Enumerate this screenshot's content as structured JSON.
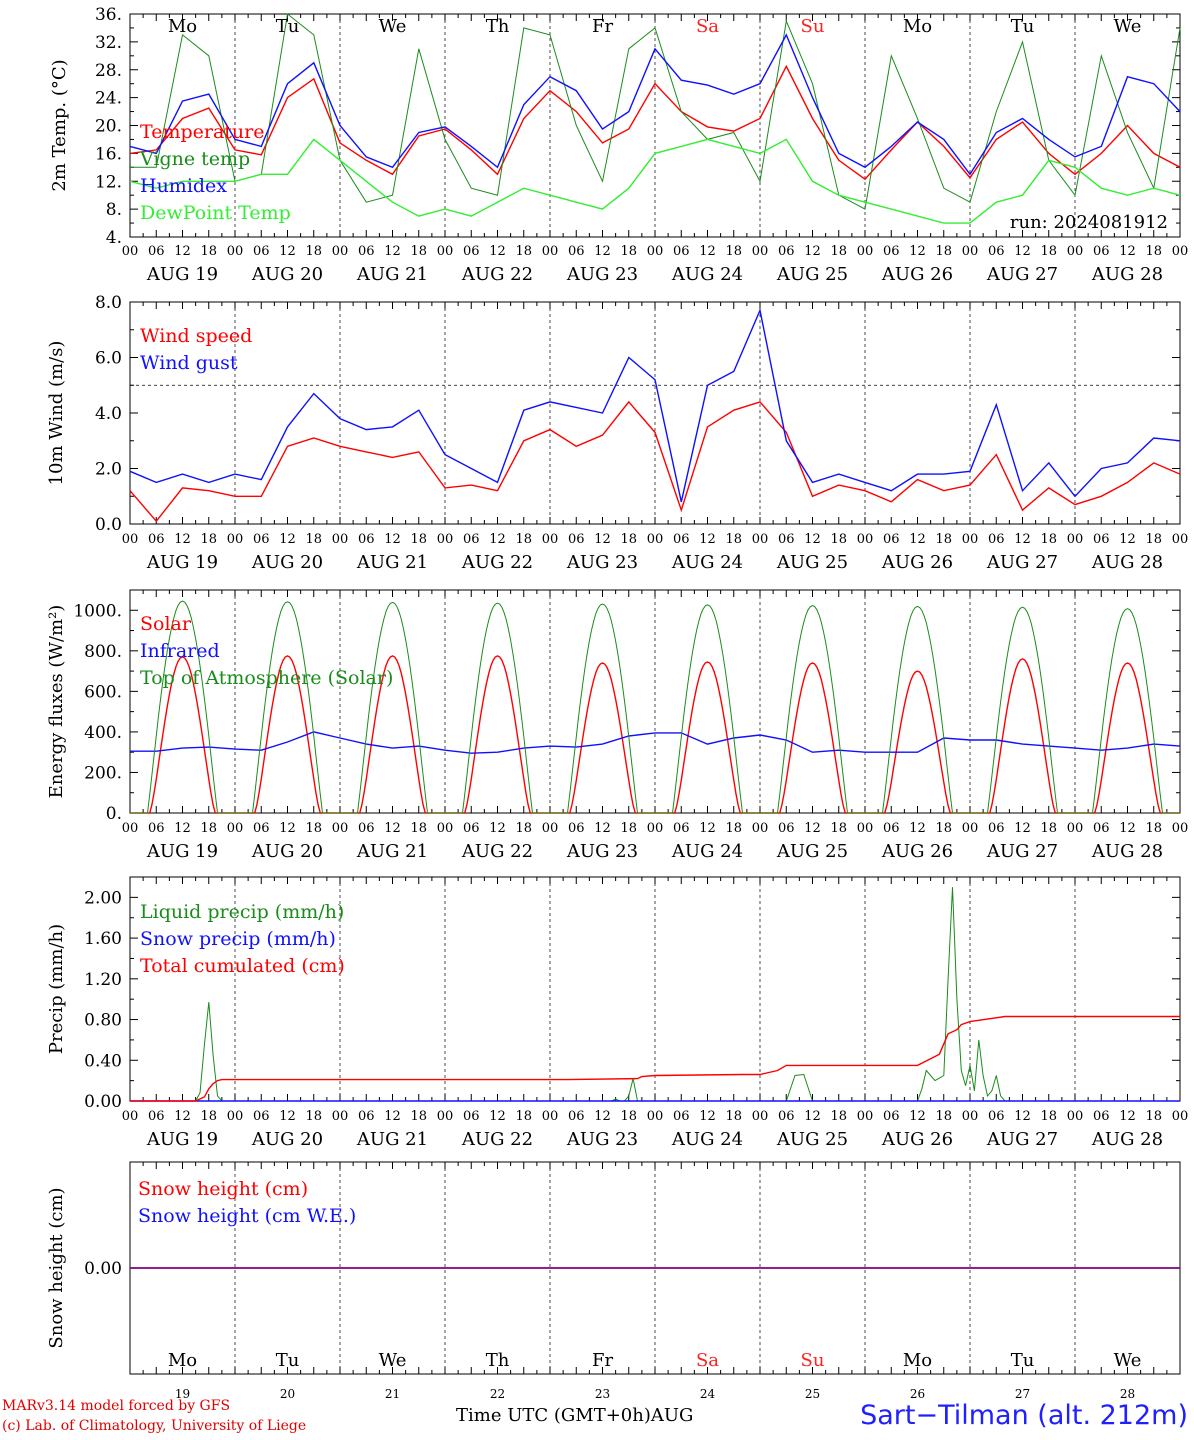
{
  "footer": {
    "model_line": "MARv3.14 model forced by GFS",
    "credit_line": "(c) Lab. of Climatology, University of Liege",
    "time_axis": "Time UTC (GMT+0h)",
    "month": "AUG",
    "station": "Sart−Tilman (alt. 212m)"
  },
  "colors": {
    "red": "#ff0000",
    "green": "#1a8c1a",
    "blue": "#1010ff",
    "light_green": "#33ee33",
    "weekend": "#ff2020",
    "snow_line": "#800080"
  },
  "day_names": [
    "Mo",
    "Tu",
    "We",
    "Th",
    "Fr",
    "Sa",
    "Su",
    "Mo",
    "Tu",
    "We"
  ],
  "weekend_days": [
    5,
    6
  ],
  "dates": [
    "AUG 19",
    "AUG 20",
    "AUG 21",
    "AUG 22",
    "AUG 23",
    "AUG 24",
    "AUG 25",
    "AUG 26",
    "AUG 27",
    "AUG 28"
  ],
  "day_numbers": [
    "19",
    "20",
    "21",
    "22",
    "23",
    "24",
    "25",
    "26",
    "27",
    "28"
  ],
  "hour_ticks": [
    "00",
    "06",
    "12",
    "18"
  ],
  "chart_data": [
    {
      "type": "line",
      "ylabel": "2m Temp. (°C)",
      "ylim": [
        4,
        36
      ],
      "yticks": [
        "4.",
        "8.",
        "12.",
        "16.",
        "20.",
        "24.",
        "28.",
        "32.",
        "36."
      ],
      "annotation": "run: 2024081912",
      "x_unit": "hours since 2024-08-19 00 UTC",
      "series": [
        {
          "name": "Temperature",
          "color": "red",
          "x": [
            0,
            6,
            12,
            18,
            24,
            30,
            36,
            42,
            48,
            54,
            60,
            66,
            72,
            78,
            84,
            90,
            96,
            102,
            108,
            114,
            120,
            126,
            132,
            138,
            144,
            150,
            156,
            162,
            168,
            174,
            180,
            186,
            192,
            198,
            204,
            210,
            216,
            222,
            228,
            234,
            240
          ],
          "values": [
            16,
            16.5,
            21,
            22.5,
            16.5,
            15.8,
            24,
            26.7,
            17.5,
            15,
            13,
            18.5,
            19.5,
            16.5,
            13,
            21,
            25,
            22,
            17.5,
            19.5,
            26,
            22,
            19.8,
            19.2,
            21,
            28.5,
            21,
            15,
            12.3,
            16.5,
            20.5,
            17,
            12.5,
            18,
            20.5,
            16,
            13,
            16,
            20,
            16,
            14
          ]
        },
        {
          "name": "Vigne temp",
          "color": "green",
          "x": [
            0,
            6,
            12,
            18,
            24,
            30,
            36,
            42,
            48,
            54,
            60,
            66,
            72,
            78,
            84,
            90,
            96,
            102,
            108,
            114,
            120,
            126,
            132,
            138,
            144,
            150,
            156,
            162,
            168,
            174,
            180,
            186,
            192,
            198,
            204,
            210,
            216,
            222,
            228,
            234,
            240
          ],
          "values": [
            14,
            14,
            33,
            30,
            12,
            13,
            36,
            33,
            15,
            9,
            10,
            31,
            18,
            11,
            10,
            34,
            33,
            20,
            12,
            31,
            34,
            22,
            18,
            19,
            12,
            35,
            26,
            10,
            8,
            30,
            21,
            11,
            9,
            22,
            32,
            15,
            10,
            30,
            19,
            11,
            34
          ]
        },
        {
          "name": "Humidex",
          "color": "blue",
          "x": [
            0,
            6,
            12,
            18,
            24,
            30,
            36,
            42,
            48,
            54,
            60,
            66,
            72,
            78,
            84,
            90,
            96,
            102,
            108,
            114,
            120,
            126,
            132,
            138,
            144,
            150,
            156,
            162,
            168,
            174,
            180,
            186,
            192,
            198,
            204,
            210,
            216,
            222,
            228,
            234,
            240
          ],
          "values": [
            17,
            16,
            23.5,
            24.5,
            18,
            17,
            26,
            29,
            20,
            15.5,
            14,
            19,
            19.8,
            17,
            14,
            23,
            27,
            25,
            19.5,
            22,
            31,
            26.5,
            25.8,
            24.5,
            26,
            33,
            24,
            16,
            14,
            17,
            20.5,
            18,
            13,
            19,
            21,
            18,
            15.5,
            17,
            27,
            26,
            22
          ]
        },
        {
          "name": "DewPoint Temp",
          "color": "light_green",
          "x": [
            0,
            6,
            12,
            18,
            24,
            30,
            36,
            42,
            48,
            54,
            60,
            66,
            72,
            78,
            84,
            90,
            96,
            102,
            108,
            114,
            120,
            126,
            132,
            138,
            144,
            150,
            156,
            162,
            168,
            174,
            180,
            186,
            192,
            198,
            204,
            210,
            216,
            222,
            228,
            234,
            240
          ],
          "values": [
            12,
            11,
            12,
            12,
            12,
            13,
            13,
            18,
            15,
            12,
            9,
            7,
            8,
            7,
            9,
            11,
            10,
            9,
            8,
            11,
            16,
            17,
            18,
            17,
            16,
            18,
            12,
            10,
            9,
            8,
            7,
            6,
            6,
            9,
            10,
            15,
            14,
            11,
            10,
            11,
            10
          ]
        }
      ]
    },
    {
      "type": "line",
      "ylabel": "10m Wind (m/s)",
      "ylim": [
        0,
        8
      ],
      "yticks": [
        "0.0",
        "2.0",
        "4.0",
        "6.0",
        "8.0"
      ],
      "reference_line": 5,
      "x_unit": "hours since 2024-08-19 00 UTC",
      "series": [
        {
          "name": "Wind speed",
          "color": "red",
          "x": [
            0,
            6,
            12,
            18,
            24,
            30,
            36,
            42,
            48,
            54,
            60,
            66,
            72,
            78,
            84,
            90,
            96,
            102,
            108,
            114,
            120,
            126,
            132,
            138,
            144,
            150,
            156,
            162,
            168,
            174,
            180,
            186,
            192,
            198,
            204,
            210,
            216,
            222,
            228,
            234,
            240
          ],
          "values": [
            1.2,
            0.1,
            1.3,
            1.2,
            1.0,
            1.0,
            2.8,
            3.1,
            2.8,
            2.6,
            2.4,
            2.6,
            1.3,
            1.4,
            1.2,
            3.0,
            3.4,
            2.8,
            3.2,
            4.4,
            3.3,
            0.5,
            3.5,
            4.1,
            4.4,
            3.3,
            1.0,
            1.4,
            1.2,
            0.8,
            1.6,
            1.2,
            1.4,
            2.5,
            0.5,
            1.3,
            0.7,
            1.0,
            1.5,
            2.2,
            1.8
          ]
        },
        {
          "name": "Wind gust",
          "color": "blue",
          "x": [
            0,
            6,
            12,
            18,
            24,
            30,
            36,
            42,
            48,
            54,
            60,
            66,
            72,
            78,
            84,
            90,
            96,
            102,
            108,
            114,
            120,
            126,
            132,
            138,
            144,
            150,
            156,
            162,
            168,
            174,
            180,
            186,
            192,
            198,
            204,
            210,
            216,
            222,
            228,
            234,
            240
          ],
          "values": [
            1.9,
            1.5,
            1.8,
            1.5,
            1.8,
            1.6,
            3.5,
            4.7,
            3.8,
            3.4,
            3.5,
            4.1,
            2.5,
            2.0,
            1.5,
            4.1,
            4.4,
            4.2,
            4.0,
            6.0,
            5.2,
            0.8,
            5.0,
            5.5,
            7.7,
            3.0,
            1.5,
            1.8,
            1.5,
            1.2,
            1.8,
            1.8,
            1.9,
            4.3,
            1.2,
            2.2,
            1.0,
            2.0,
            2.2,
            3.1,
            3.0
          ]
        }
      ]
    },
    {
      "type": "line",
      "ylabel": "Energy fluxes (W/m²)",
      "ylim": [
        0,
        1100
      ],
      "yticks": [
        "0.",
        "200.",
        "400.",
        "600.",
        "800.",
        "1000."
      ],
      "daily_solar_peak": [
        770,
        775,
        775,
        775,
        740,
        745,
        740,
        700,
        760,
        740
      ],
      "daily_toa_peak": [
        1045,
        1042,
        1039,
        1035,
        1031,
        1027,
        1023,
        1019,
        1015,
        1008
      ],
      "x_unit": "hours since 2024-08-19 00 UTC",
      "series": [
        {
          "name": "Solar",
          "color": "red"
        },
        {
          "name": "Infrared",
          "color": "blue",
          "x": [
            0,
            6,
            12,
            18,
            24,
            30,
            36,
            42,
            48,
            54,
            60,
            66,
            72,
            78,
            84,
            90,
            96,
            102,
            108,
            114,
            120,
            126,
            132,
            138,
            144,
            150,
            156,
            162,
            168,
            174,
            180,
            186,
            192,
            198,
            204,
            210,
            216,
            222,
            228,
            234,
            240
          ],
          "values": [
            305,
            305,
            320,
            325,
            315,
            310,
            350,
            400,
            370,
            340,
            320,
            330,
            310,
            295,
            300,
            320,
            330,
            325,
            340,
            380,
            395,
            395,
            340,
            370,
            385,
            360,
            300,
            310,
            300,
            300,
            300,
            370,
            360,
            360,
            340,
            330,
            320,
            310,
            320,
            340,
            330
          ]
        },
        {
          "name": "Top of Atmosphere (Solar)",
          "color": "green"
        }
      ]
    },
    {
      "type": "line",
      "ylabel": "Precip (mm/h)",
      "ylim": [
        0,
        2.2
      ],
      "yticks": [
        "0.00",
        "0.40",
        "0.80",
        "1.20",
        "1.60",
        "2.00"
      ],
      "x_unit": "hours since 2024-08-19 00 UTC",
      "series": [
        {
          "name": "Liquid precip (mm/h)",
          "color": "green",
          "x": [
            0,
            15,
            16,
            17,
            18,
            19,
            20,
            21,
            110,
            111,
            112,
            113,
            114,
            115,
            116,
            150,
            152,
            154,
            156,
            158,
            160,
            180,
            181,
            182,
            184,
            186,
            187,
            188,
            189,
            190,
            191,
            192,
            193,
            194,
            195,
            196,
            197,
            198,
            199,
            200,
            240
          ],
          "values": [
            0,
            0,
            0.08,
            0.55,
            0.97,
            0.45,
            0.05,
            0,
            0,
            0.02,
            0,
            0,
            0.05,
            0.22,
            0,
            0,
            0.25,
            0.26,
            0,
            0,
            0,
            0,
            0.12,
            0.3,
            0.2,
            0.25,
            1.2,
            2.1,
            1.0,
            0.3,
            0.15,
            0.35,
            0.1,
            0.6,
            0.25,
            0.05,
            0.1,
            0.25,
            0.05,
            0,
            0
          ]
        },
        {
          "name": "Snow precip (mm/h)",
          "color": "blue",
          "x": [
            0,
            240
          ],
          "values": [
            0,
            0
          ]
        },
        {
          "name": "Total cumulated (cm)",
          "color": "red",
          "x": [
            0,
            15,
            17,
            18,
            19,
            20,
            21,
            24,
            100,
            116,
            117,
            120,
            140,
            144,
            148,
            150,
            180,
            185,
            187,
            189,
            190,
            192,
            200,
            240
          ],
          "values": [
            0,
            0,
            0.04,
            0.12,
            0.17,
            0.2,
            0.21,
            0.21,
            0.21,
            0.22,
            0.24,
            0.25,
            0.26,
            0.26,
            0.3,
            0.35,
            0.35,
            0.46,
            0.66,
            0.7,
            0.75,
            0.78,
            0.83,
            0.83
          ]
        }
      ]
    },
    {
      "type": "line",
      "ylabel": "Snow height (cm)",
      "ylim": [
        -1,
        1
      ],
      "yticks": [
        "0.00"
      ],
      "x_unit": "hours since 2024-08-19 00 UTC",
      "series": [
        {
          "name": "Snow height (cm)",
          "color": "red",
          "x": [
            0,
            240
          ],
          "values": [
            0,
            0
          ]
        },
        {
          "name": "Snow height (cm W.E.)",
          "color": "blue",
          "x": [
            0,
            240
          ],
          "values": [
            0,
            0
          ]
        }
      ]
    }
  ]
}
